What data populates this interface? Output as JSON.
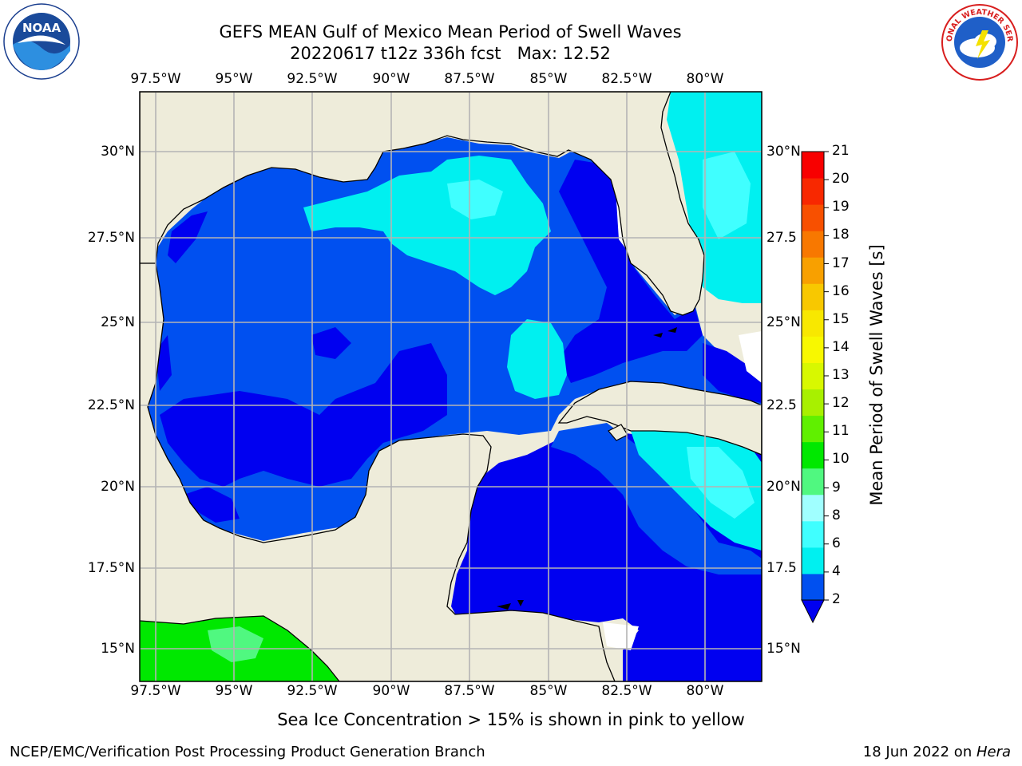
{
  "title": {
    "line1": "GEFS MEAN Gulf of Mexico Mean Period of Swell Waves",
    "line2": "20220617 t12z 336h fcst   Max: 12.52"
  },
  "map": {
    "region": "Gulf of Mexico",
    "lon_range": [
      -98.0,
      -78.2
    ],
    "lat_range": [
      14.0,
      31.8
    ],
    "lon_ticks_top": [
      "97.5°W",
      "95°W",
      "92.5°W",
      "90°W",
      "87.5°W",
      "85°W",
      "82.5°W",
      "80°W"
    ],
    "lon_ticks_bottom": [
      "97.5°W",
      "95°W",
      "92.5°W",
      "90°W",
      "87.5°W",
      "85°W",
      "82.5°W",
      "80°W"
    ],
    "lat_ticks_left": [
      "30°N",
      "27.5°N",
      "25°N",
      "22.5°N",
      "20°N",
      "17.5°N",
      "15°N"
    ],
    "lat_ticks_right": [
      "30°N",
      "27.5",
      "25°N",
      "22.5",
      "20°N",
      "17.5",
      "15°N"
    ],
    "grid": true,
    "land_color": "#eeecda",
    "coastline_color": "#000000",
    "gridline_color": "#b4b4b4"
  },
  "colorbar": {
    "label": "Mean Period of Swell Waves [s]",
    "ticks": [
      "21",
      "20",
      "19",
      "18",
      "17",
      "16",
      "15",
      "14",
      "13",
      "12",
      "11",
      "10",
      "9",
      "8",
      "6",
      "4",
      "2"
    ],
    "colors": [
      "#0050f0",
      "#00f0f0",
      "#40ffff",
      "#a0ffff",
      "#50f880",
      "#00e800",
      "#60f000",
      "#a8f000",
      "#d8f800",
      "#f8f800",
      "#f8e800",
      "#f8c800",
      "#f8a000",
      "#f87800",
      "#f85000",
      "#f82800",
      "#f80000"
    ],
    "extend_min_color": "#0000f0"
  },
  "footer": {
    "note": "Sea Ice Concentration > 15% is shown in pink to yellow",
    "left": "NCEP/EMC/Verification Post Processing Product Generation Branch",
    "right_date": "18 Jun 2022 on ",
    "right_host": "Hera"
  },
  "logos": {
    "noaa_text": "NOAA",
    "nws_text": "NATIONAL WEATHER SERVICE"
  }
}
